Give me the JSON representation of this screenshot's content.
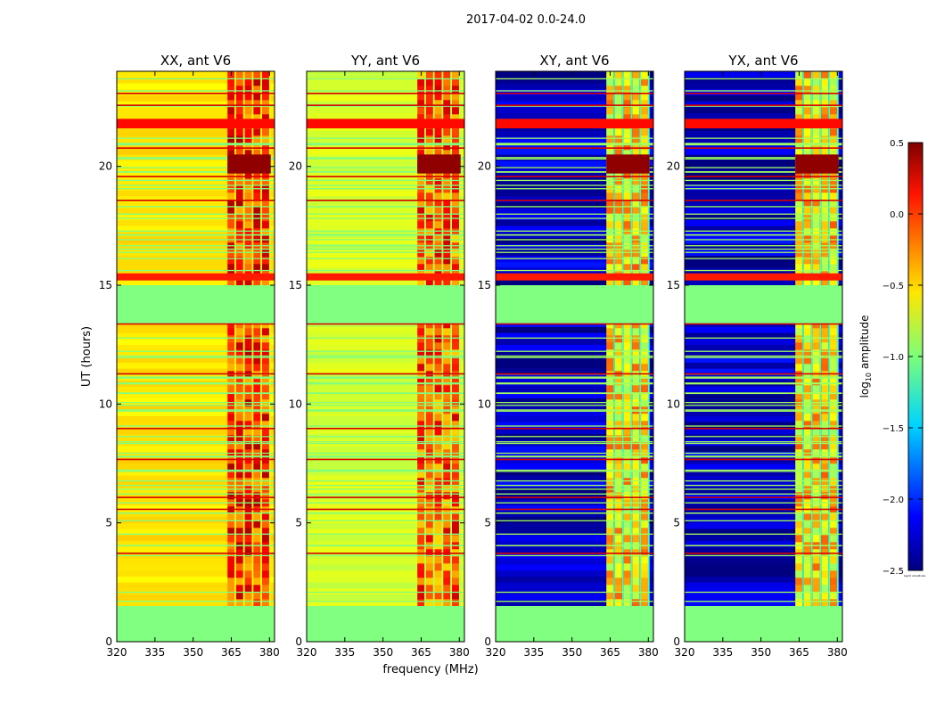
{
  "figure": {
    "suptitle": "2017-04-02 0.0-24.0",
    "ylabel": "UT (hours)",
    "xlabel": "frequency (MHz)"
  },
  "chart_data": [
    {
      "type": "heatmap",
      "title": "XX, ant V6",
      "colormap": "jet",
      "x_ticks": [
        320,
        335,
        350,
        365,
        380
      ],
      "x_tick_labels": [
        "320",
        "335",
        "350",
        "365",
        "380"
      ],
      "xlim": [
        320,
        382
      ],
      "y_ticks": [
        0,
        5,
        10,
        15,
        20
      ],
      "y_tick_labels": [
        "0",
        "5",
        "10",
        "15",
        "20"
      ],
      "ylim": [
        0,
        24
      ],
      "base_level": -0.55,
      "rfi_band_mhz": [
        363.5,
        380.5
      ],
      "band_level": -0.1,
      "no_data_hours": [
        [
          0,
          1.5
        ],
        [
          13.4,
          15.0
        ]
      ],
      "no_data_level": -1.0
    },
    {
      "type": "heatmap",
      "title": "YY, ant V6",
      "colormap": "jet",
      "x_ticks": [
        320,
        335,
        350,
        365,
        380
      ],
      "x_tick_labels": [
        "320",
        "335",
        "350",
        "365",
        "380"
      ],
      "xlim": [
        320,
        382
      ],
      "y_ticks": [
        0,
        5,
        10,
        15,
        20
      ],
      "y_tick_labels": [
        "0",
        "5",
        "10",
        "15",
        "20"
      ],
      "ylim": [
        0,
        24
      ],
      "base_level": -0.75,
      "rfi_band_mhz": [
        363.5,
        380.5
      ],
      "band_level": -0.2,
      "no_data_hours": [
        [
          0,
          1.5
        ],
        [
          13.4,
          15.0
        ]
      ],
      "no_data_level": -1.0
    },
    {
      "type": "heatmap",
      "title": "XY, ant V6",
      "colormap": "jet",
      "x_ticks": [
        320,
        335,
        350,
        365,
        380
      ],
      "x_tick_labels": [
        "320",
        "335",
        "350",
        "365",
        "380"
      ],
      "xlim": [
        320,
        382
      ],
      "y_ticks": [
        0,
        5,
        10,
        15,
        20
      ],
      "y_tick_labels": [
        "0",
        "5",
        "10",
        "15",
        "20"
      ],
      "ylim": [
        0,
        24
      ],
      "base_level": -2.3,
      "rfi_band_mhz": [
        363.5,
        380.5
      ],
      "band_level": -0.6,
      "no_data_hours": [
        [
          0,
          1.5
        ],
        [
          13.4,
          15.0
        ]
      ],
      "no_data_level": -1.0
    },
    {
      "type": "heatmap",
      "title": "YX, ant V6",
      "colormap": "jet",
      "x_ticks": [
        320,
        335,
        350,
        365,
        380
      ],
      "x_tick_labels": [
        "320",
        "335",
        "350",
        "365",
        "380"
      ],
      "xlim": [
        320,
        382
      ],
      "y_ticks": [
        0,
        5,
        10,
        15,
        20
      ],
      "y_tick_labels": [
        "0",
        "5",
        "10",
        "15",
        "20"
      ],
      "ylim": [
        0,
        24
      ],
      "base_level": -2.3,
      "rfi_band_mhz": [
        363.5,
        380.5
      ],
      "band_level": -0.6,
      "no_data_hours": [
        [
          0,
          1.5
        ],
        [
          13.4,
          15.0
        ]
      ],
      "no_data_level": -1.0
    }
  ],
  "colorbar": {
    "label": "log10 amplitude",
    "range": [
      -2.5,
      0.5
    ],
    "ticks": [
      0.5,
      0.0,
      -0.5,
      -1.0,
      -1.5,
      -2.0,
      -2.5
    ],
    "tick_labels": [
      "0.5",
      "0.0",
      "−0.5",
      "−1.0",
      "−1.5",
      "−2.0",
      "−2.5"
    ]
  }
}
